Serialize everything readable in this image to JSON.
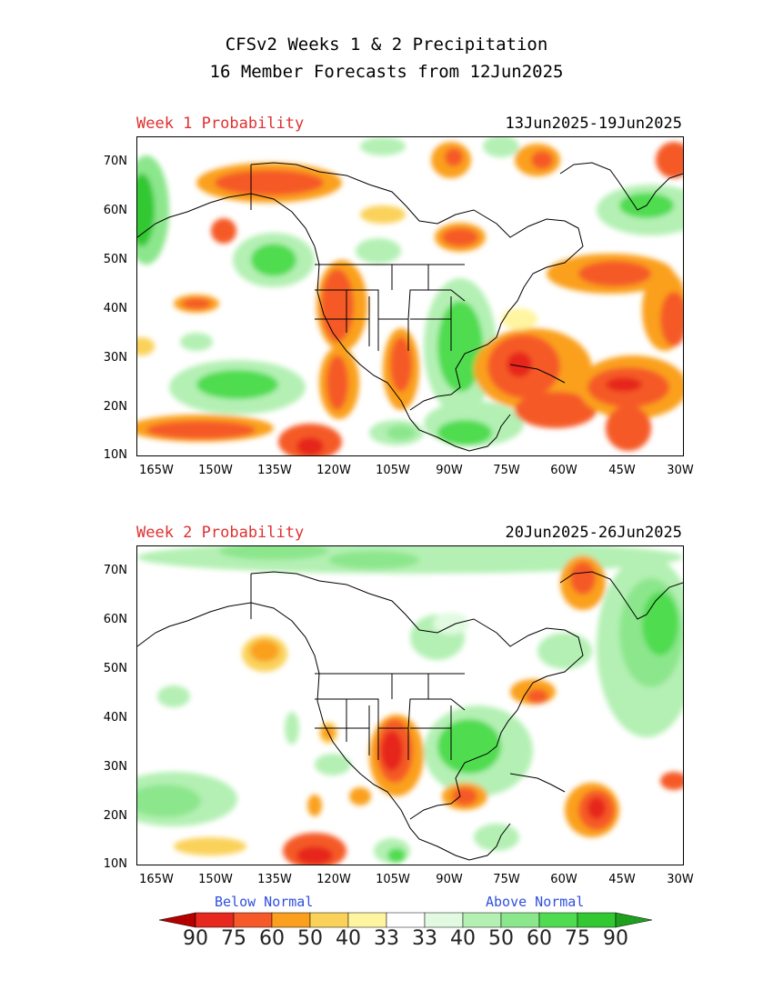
{
  "title": {
    "line1": "CFSv2 Weeks 1 & 2 Precipitation",
    "line2": "16 Member Forecasts from 12Jun2025"
  },
  "panels": [
    {
      "label": "Week 1 Probability",
      "dates": "13Jun2025-19Jun2025"
    },
    {
      "label": "Week 2 Probability",
      "dates": "20Jun2025-26Jun2025"
    }
  ],
  "axes": {
    "lat_labels": [
      "70N",
      "60N",
      "50N",
      "40N",
      "30N",
      "20N",
      "10N"
    ],
    "lon_labels": [
      "165W",
      "150W",
      "135W",
      "120W",
      "105W",
      "90W",
      "75W",
      "60W",
      "45W",
      "30W"
    ]
  },
  "legend": {
    "below": "Below Normal",
    "above": "Above Normal",
    "values": [
      "90",
      "75",
      "60",
      "50",
      "40",
      "33",
      "33",
      "40",
      "50",
      "60",
      "75",
      "90"
    ],
    "colors": [
      "#b40000",
      "#e6281e",
      "#f55a28",
      "#faa01e",
      "#fad25a",
      "#fff5a0",
      "#ffffff",
      "#e1fae1",
      "#b4f0b4",
      "#8ce68c",
      "#50dc50",
      "#32c832",
      "#1ea01e"
    ]
  }
}
